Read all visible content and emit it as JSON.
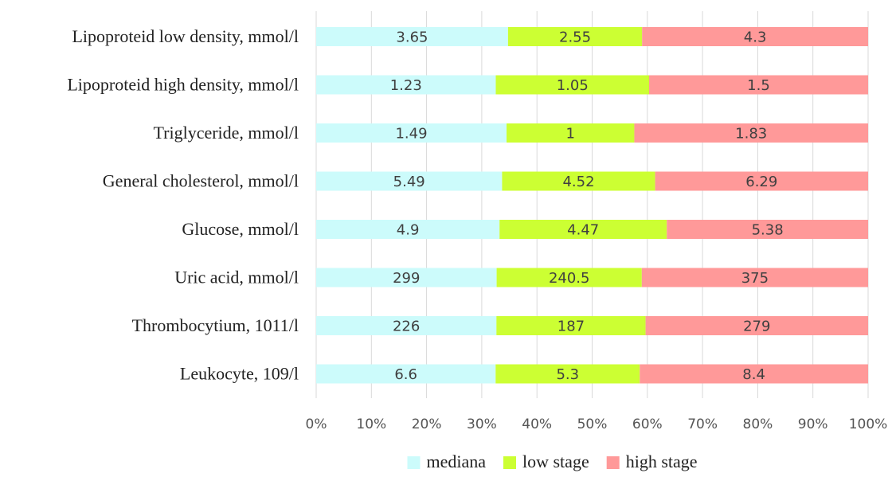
{
  "chart_data": {
    "type": "bar",
    "orientation": "horizontal",
    "stacked": "percent",
    "categories": [
      "Lipoproteid low density, mmol/l",
      "Lipoproteid high density, mmol/l",
      "Triglyceride, mmol/l",
      "General cholesterol, mmol/l",
      "Glucose, mmol/l",
      "Uric acid, mmol/l",
      "Thrombocytium, 1011/l",
      "Leukocyte, 109/l"
    ],
    "series": [
      {
        "name": "mediana",
        "color": "#ccfbfb",
        "values": [
          3.65,
          1.23,
          1.49,
          5.49,
          4.9,
          299,
          226,
          6.6
        ],
        "labels": [
          "3.65",
          "1.23",
          "1.49",
          "5.49",
          "4.9",
          "299",
          "226",
          "6.6"
        ]
      },
      {
        "name": "low stage",
        "color": "#ccff33",
        "values": [
          2.55,
          1.05,
          1,
          4.52,
          4.47,
          240.5,
          187,
          5.3
        ],
        "labels": [
          "2.55",
          "1.05",
          "1",
          "4.52",
          "4.47",
          "240.5",
          "187",
          "5.3"
        ]
      },
      {
        "name": "high stage",
        "color": "#ff9999",
        "values": [
          4.3,
          1.5,
          1.83,
          6.29,
          5.38,
          375,
          279,
          8.4
        ],
        "labels": [
          "4.3",
          "1.5",
          "1.83",
          "6.29",
          "5.38",
          "375",
          "279",
          "8.4"
        ]
      }
    ],
    "xticks": [
      "0%",
      "10%",
      "20%",
      "30%",
      "40%",
      "50%",
      "60%",
      "70%",
      "80%",
      "90%",
      "100%"
    ],
    "xlim": [
      0,
      100
    ],
    "grid": "vertical",
    "legend": "bottom"
  }
}
